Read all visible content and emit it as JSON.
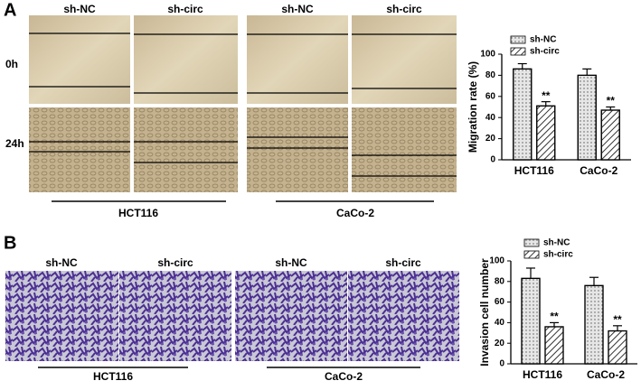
{
  "panel_a": {
    "label": "A",
    "columns": [
      "sh-NC",
      "sh-circ",
      "sh-NC",
      "sh-circ"
    ],
    "rows": [
      "0h",
      "24h"
    ],
    "groups": [
      "HCT116",
      "CaCo-2"
    ]
  },
  "panel_b": {
    "label": "B",
    "columns": [
      "sh-NC",
      "sh-circ",
      "sh-NC",
      "sh-circ"
    ],
    "groups": [
      "HCT116",
      "CaCo-2"
    ]
  },
  "chart_data": [
    {
      "type": "bar",
      "y_label": "Migration rate (%)",
      "categories": [
        "HCT116",
        "CaCo-2"
      ],
      "series": [
        {
          "name": "sh-NC",
          "color": "#e6e6e6",
          "pattern": "dots",
          "values": [
            86,
            80
          ],
          "errors": [
            5,
            6
          ]
        },
        {
          "name": "sh-circ",
          "color": "#ffffff",
          "pattern": "hatch",
          "values": [
            51,
            47
          ],
          "errors": [
            4,
            3
          ],
          "annotations": [
            "**",
            "**"
          ]
        }
      ],
      "ylim": [
        0,
        100
      ],
      "yticks": [
        0,
        20,
        40,
        60,
        80,
        100
      ],
      "grid": false,
      "legend": "top-left"
    },
    {
      "type": "bar",
      "y_label": "Invasion cell number",
      "categories": [
        "HCT116",
        "CaCo-2"
      ],
      "series": [
        {
          "name": "sh-NC",
          "color": "#e6e6e6",
          "pattern": "dots",
          "values": [
            83,
            76
          ],
          "errors": [
            10,
            8
          ]
        },
        {
          "name": "sh-circ",
          "color": "#ffffff",
          "pattern": "hatch",
          "values": [
            36,
            32
          ],
          "errors": [
            4,
            5
          ],
          "annotations": [
            "**",
            "**"
          ]
        }
      ],
      "ylim": [
        0,
        100
      ],
      "yticks": [
        0,
        20,
        40,
        60,
        80,
        100
      ],
      "grid": false,
      "legend": "top-left"
    }
  ]
}
